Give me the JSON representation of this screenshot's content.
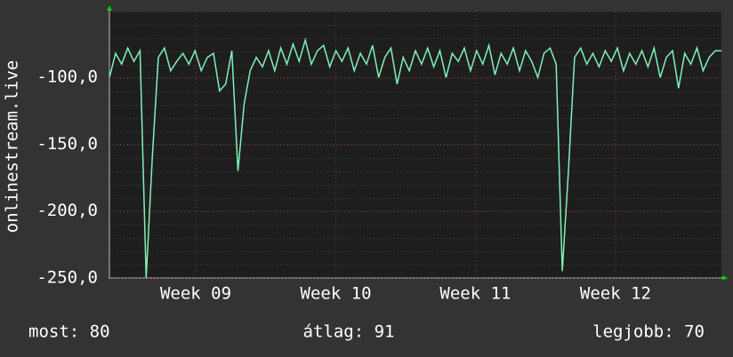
{
  "chart_data": {
    "type": "line",
    "ylabel": "onlinestream.live",
    "series": [
      {
        "name": "onlinestream.live",
        "color": "#80f0b8",
        "values": [
          -100,
          -82,
          -90,
          -78,
          -88,
          -80,
          -250,
          -160,
          -85,
          -78,
          -95,
          -88,
          -82,
          -90,
          -80,
          -95,
          -85,
          -82,
          -110,
          -105,
          -80,
          -170,
          -120,
          -95,
          -85,
          -92,
          -80,
          -95,
          -78,
          -90,
          -75,
          -88,
          -72,
          -90,
          -80,
          -76,
          -92,
          -80,
          -88,
          -78,
          -95,
          -82,
          -90,
          -76,
          -100,
          -85,
          -78,
          -105,
          -85,
          -95,
          -80,
          -90,
          -78,
          -92,
          -80,
          -100,
          -82,
          -88,
          -78,
          -95,
          -80,
          -90,
          -76,
          -98,
          -82,
          -90,
          -78,
          -95,
          -80,
          -88,
          -100,
          -82,
          -78,
          -90,
          -245,
          -170,
          -85,
          -78,
          -90,
          -82,
          -92,
          -80,
          -88,
          -78,
          -95,
          -82,
          -90,
          -80,
          -92,
          -78,
          -100,
          -85,
          -80,
          -108,
          -82,
          -90,
          -78,
          -95,
          -85,
          -80,
          -80
        ]
      }
    ],
    "xlim": [
      0,
      100
    ],
    "xticks": [
      {
        "value": 14.1,
        "label": "Week 09"
      },
      {
        "value": 37.0,
        "label": "Week 10"
      },
      {
        "value": 59.8,
        "label": "Week 11"
      },
      {
        "value": 82.7,
        "label": "Week 12"
      }
    ],
    "ylim": [
      -250,
      -50.7
    ],
    "yticks": [
      {
        "value": -100,
        "label": "-100,0"
      },
      {
        "value": -150,
        "label": "-150,0"
      },
      {
        "value": -200,
        "label": "-200,0"
      },
      {
        "value": -250,
        "label": "-250,0"
      }
    ],
    "grid": true,
    "footer": [
      "most: 80",
      "átlag: 91",
      "legjobb: 70"
    ]
  }
}
